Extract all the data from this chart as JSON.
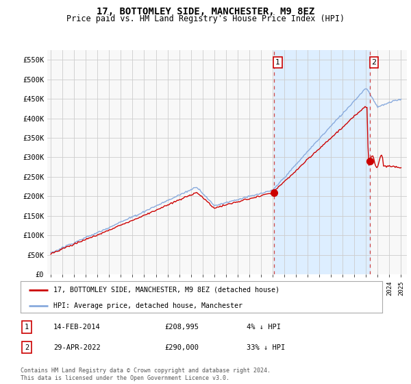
{
  "title": "17, BOTTOMLEY SIDE, MANCHESTER, M9 8EZ",
  "subtitle": "Price paid vs. HM Land Registry's House Price Index (HPI)",
  "title_fontsize": 10,
  "subtitle_fontsize": 8.5,
  "ylabel_ticks": [
    "£0",
    "£50K",
    "£100K",
    "£150K",
    "£200K",
    "£250K",
    "£300K",
    "£350K",
    "£400K",
    "£450K",
    "£500K",
    "£550K"
  ],
  "ytick_vals": [
    0,
    50000,
    100000,
    150000,
    200000,
    250000,
    300000,
    350000,
    400000,
    450000,
    500000,
    550000
  ],
  "ylim": [
    0,
    575000
  ],
  "xlim_start": 1994.7,
  "xlim_end": 2025.5,
  "red_line_color": "#cc0000",
  "blue_line_color": "#88aadd",
  "shade_color": "#ddeeff",
  "grid_color": "#cccccc",
  "marker1_x": 2014.1,
  "marker1_y": 208995,
  "marker2_x": 2022.33,
  "marker2_y": 290000,
  "vline1_x": 2014.1,
  "vline2_x": 2022.33,
  "vline_color": "#cc4444",
  "vline_style": "--",
  "legend_label_red": "17, BOTTOMLEY SIDE, MANCHESTER, M9 8EZ (detached house)",
  "legend_label_blue": "HPI: Average price, detached house, Manchester",
  "annot1_label": "1",
  "annot1_date": "14-FEB-2014",
  "annot1_price": "£208,995",
  "annot1_hpi": "4% ↓ HPI",
  "annot2_label": "2",
  "annot2_date": "29-APR-2022",
  "annot2_price": "£290,000",
  "annot2_hpi": "33% ↓ HPI",
  "footer": "Contains HM Land Registry data © Crown copyright and database right 2024.\nThis data is licensed under the Open Government Licence v3.0.",
  "bg_color": "#ffffff",
  "plot_bg_color": "#f8f8f8"
}
